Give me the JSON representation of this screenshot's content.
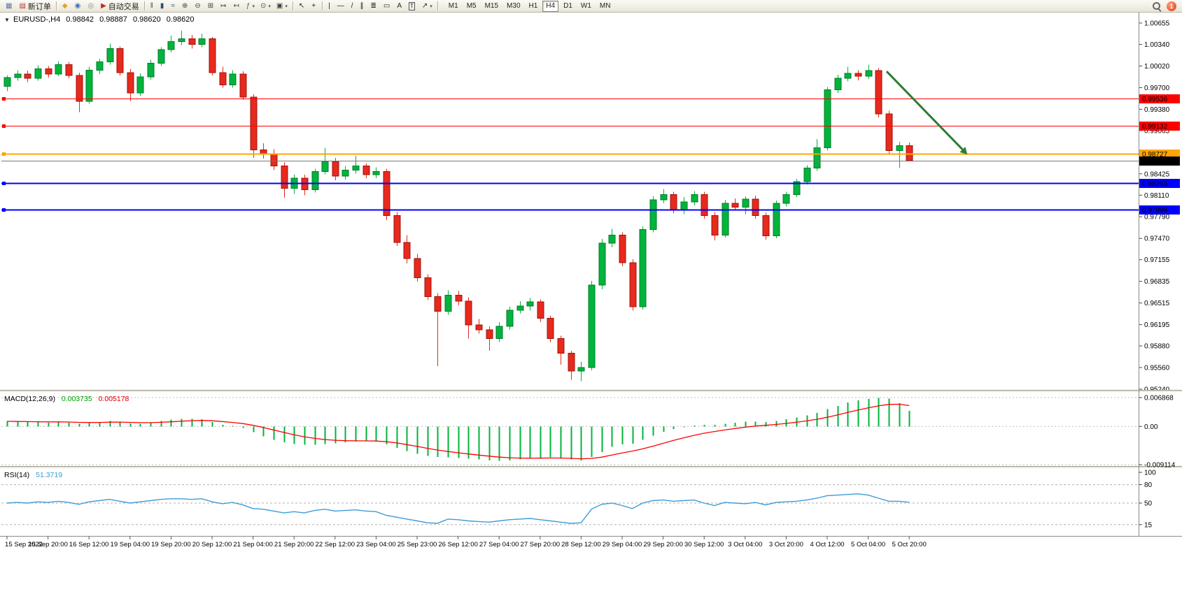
{
  "toolbar": {
    "items": [
      {
        "type": "icon",
        "name": "chart-window-icon",
        "glyph": "▦",
        "color": "#5A79A5"
      },
      {
        "type": "button",
        "name": "new-order-button",
        "glyph": "▤",
        "color": "#B23B2E",
        "label": "新订单"
      },
      {
        "type": "sep"
      },
      {
        "type": "icon",
        "name": "mql5-market-icon",
        "glyph": "◆",
        "color": "#DFA32D"
      },
      {
        "type": "icon",
        "name": "community-profile-icon",
        "glyph": "◉",
        "color": "#3B6FB5"
      },
      {
        "type": "icon",
        "name": "web-search-icon",
        "glyph": "◎",
        "color": "#8A8A8A"
      },
      {
        "type": "button",
        "name": "autotrading-button",
        "glyph": "▶",
        "color": "#C02B1D",
        "label": "自动交易"
      },
      {
        "type": "sep"
      },
      {
        "type": "icon",
        "name": "bars-chart-icon",
        "glyph": "‖",
        "color": "#3A5F3A"
      },
      {
        "type": "icon",
        "name": "candlestick-chart-icon",
        "glyph": "▮",
        "color": "#2E4E6E"
      },
      {
        "type": "icon",
        "name": "line-chart-icon",
        "glyph": "≈",
        "color": "#2E4E6E"
      },
      {
        "type": "icon",
        "name": "zoom-in-icon",
        "glyph": "⊕",
        "color": "#444444"
      },
      {
        "type": "icon",
        "name": "zoom-out-icon",
        "glyph": "⊖",
        "color": "#444444"
      },
      {
        "type": "icon",
        "name": "tile-windows-icon",
        "glyph": "⊞",
        "color": "#444444"
      },
      {
        "type": "icon",
        "name": "auto-scroll-icon",
        "glyph": "↦",
        "color": "#444444"
      },
      {
        "type": "icon",
        "name": "chart-shift-icon",
        "glyph": "↤",
        "color": "#444444"
      },
      {
        "type": "icon",
        "name": "indicators-icon",
        "glyph": "ƒ",
        "color": "#2E7D32",
        "caret": true
      },
      {
        "type": "icon",
        "name": "periods-clock-icon",
        "glyph": "⊙",
        "color": "#444444",
        "caret": true
      },
      {
        "type": "icon",
        "name": "templates-icon",
        "glyph": "▣",
        "color": "#444444",
        "caret": true
      },
      {
        "type": "sep"
      },
      {
        "type": "icon",
        "name": "cursor-icon",
        "glyph": "↖",
        "color": "#222222"
      },
      {
        "type": "icon",
        "name": "crosshair-icon",
        "glyph": "+",
        "color": "#222222"
      },
      {
        "type": "sep"
      },
      {
        "type": "icon",
        "name": "vertical-line-icon",
        "glyph": "|",
        "color": "#222222"
      },
      {
        "type": "icon",
        "name": "horizontal-line-icon",
        "glyph": "—",
        "color": "#222222"
      },
      {
        "type": "icon",
        "name": "trendline-icon",
        "glyph": "/",
        "color": "#222222"
      },
      {
        "type": "icon",
        "name": "equidistant-channel-icon",
        "glyph": "∥",
        "color": "#222222"
      },
      {
        "type": "icon",
        "name": "fibonacci-icon",
        "glyph": "≣",
        "color": "#222222"
      },
      {
        "type": "icon",
        "name": "shapes-icon",
        "glyph": "▭",
        "color": "#222222"
      },
      {
        "type": "icon",
        "name": "text-label-icon",
        "glyph": "A",
        "color": "#222222"
      },
      {
        "type": "icon",
        "name": "text-box-icon",
        "glyph": "T",
        "color": "#222222",
        "boxed": true
      },
      {
        "type": "icon",
        "name": "arrow-tools-icon",
        "glyph": "↗",
        "color": "#222222",
        "caret": true
      },
      {
        "type": "sep"
      }
    ],
    "timeframes": [
      {
        "label": "M1"
      },
      {
        "label": "M5"
      },
      {
        "label": "M15"
      },
      {
        "label": "M30"
      },
      {
        "label": "H1"
      },
      {
        "label": "H4",
        "active": true
      },
      {
        "label": "D1"
      },
      {
        "label": "W1"
      },
      {
        "label": "MN"
      }
    ],
    "notification_badge": "1"
  },
  "chart_data": {
    "type": "candlestick",
    "title_bar": {
      "collapse_icon": "▼",
      "symbol": "EURUSD-,H4",
      "open": "0.98842",
      "high": "0.98887",
      "low": "0.98620",
      "close": "0.98620"
    },
    "price_max": 1.00655,
    "price_min": 0.9524,
    "price_axis_ticks": [
      "1.00655",
      "1.00340",
      "1.00020",
      "0.99700",
      "0.99380",
      "0.99065",
      "0.98745",
      "0.98425",
      "0.98110",
      "0.97790",
      "0.97470",
      "0.97155",
      "0.96835",
      "0.96515",
      "0.96195",
      "0.95880",
      "0.95560",
      "0.95240"
    ],
    "time_labels": [
      "15 Sep 2022",
      "15 Sep 20:00",
      "16 Sep 12:00",
      "19 Sep 04:00",
      "19 Sep 20:00",
      "20 Sep 12:00",
      "21 Sep 04:00",
      "21 Sep 20:00",
      "22 Sep 12:00",
      "23 Sep 04:00",
      "25 Sep 23:00",
      "26 Sep 12:00",
      "27 Sep 04:00",
      "27 Sep 20:00",
      "28 Sep 12:00",
      "29 Sep 04:00",
      "29 Sep 20:00",
      "30 Sep 12:00",
      "3 Oct 04:00",
      "3 Oct 20:00",
      "4 Oct 12:00",
      "5 Oct 04:00",
      "5 Oct 20:00"
    ],
    "colors": {
      "up": "#00B43C",
      "down": "#E8291D",
      "up_border": "#007A29",
      "down_border": "#9E140C"
    },
    "candles": [
      [
        0.9972,
        0.9988,
        0.9965,
        0.9985
      ],
      [
        0.9985,
        0.9996,
        0.998,
        0.999
      ],
      [
        0.999,
        0.9995,
        0.9978,
        0.9984
      ],
      [
        0.9984,
        1.0003,
        0.998,
        0.9998
      ],
      [
        0.9998,
        1.0002,
        0.9985,
        0.999
      ],
      [
        0.999,
        1.0009,
        0.9987,
        1.0004
      ],
      [
        1.0004,
        1.0008,
        0.9984,
        0.9988
      ],
      [
        0.9988,
        0.9992,
        0.9934,
        0.995
      ],
      [
        0.995,
        1.0001,
        0.9946,
        0.9996
      ],
      [
        0.9996,
        1.0013,
        0.999,
        1.0008
      ],
      [
        1.0008,
        1.0035,
        1.0004,
        1.0028
      ],
      [
        1.0028,
        1.0031,
        0.9988,
        0.9992
      ],
      [
        0.9992,
        0.9998,
        0.995,
        0.9962
      ],
      [
        0.9962,
        0.9991,
        0.9958,
        0.9986
      ],
      [
        0.9986,
        1.0011,
        0.9982,
        1.0006
      ],
      [
        1.0006,
        1.003,
        1.0002,
        1.0026
      ],
      [
        1.0026,
        1.0047,
        1.0022,
        1.0038
      ],
      [
        1.0038,
        1.0054,
        1.0033,
        1.0042
      ],
      [
        1.0042,
        1.0048,
        1.0028,
        1.0034
      ],
      [
        1.0034,
        1.005,
        1.003,
        1.0042
      ],
      [
        1.0042,
        1.0045,
        0.9988,
        0.9992
      ],
      [
        0.9992,
        1.0001,
        0.997,
        0.9974
      ],
      [
        0.9974,
        0.9996,
        0.997,
        0.999
      ],
      [
        0.999,
        0.9994,
        0.9952,
        0.9956
      ],
      [
        0.9956,
        0.996,
        0.9866,
        0.9878
      ],
      [
        0.9878,
        0.9888,
        0.9865,
        0.9871
      ],
      [
        0.9871,
        0.9879,
        0.9848,
        0.9854
      ],
      [
        0.9854,
        0.986,
        0.9807,
        0.9821
      ],
      [
        0.9821,
        0.9842,
        0.9813,
        0.9836
      ],
      [
        0.9836,
        0.9841,
        0.9811,
        0.9819
      ],
      [
        0.9819,
        0.985,
        0.9815,
        0.9846
      ],
      [
        0.9846,
        0.9881,
        0.9842,
        0.9861
      ],
      [
        0.9861,
        0.9866,
        0.9833,
        0.9839
      ],
      [
        0.9839,
        0.9854,
        0.9834,
        0.9848
      ],
      [
        0.9848,
        0.9869,
        0.9843,
        0.9854
      ],
      [
        0.9854,
        0.9858,
        0.9836,
        0.9841
      ],
      [
        0.9841,
        0.9852,
        0.9836,
        0.9846
      ],
      [
        0.9846,
        0.985,
        0.9774,
        0.9781
      ],
      [
        0.9781,
        0.9786,
        0.9736,
        0.9741
      ],
      [
        0.9741,
        0.9752,
        0.971,
        0.9717
      ],
      [
        0.9717,
        0.9724,
        0.9683,
        0.9689
      ],
      [
        0.9689,
        0.9694,
        0.9656,
        0.9661
      ],
      [
        0.9661,
        0.9666,
        0.9558,
        0.9639
      ],
      [
        0.9639,
        0.967,
        0.9634,
        0.9663
      ],
      [
        0.9663,
        0.9669,
        0.9648,
        0.9654
      ],
      [
        0.9654,
        0.966,
        0.9599,
        0.9619
      ],
      [
        0.9619,
        0.9628,
        0.9606,
        0.9612
      ],
      [
        0.9612,
        0.9617,
        0.9581,
        0.9599
      ],
      [
        0.9599,
        0.9623,
        0.9594,
        0.9617
      ],
      [
        0.9617,
        0.9646,
        0.9612,
        0.9641
      ],
      [
        0.9641,
        0.9654,
        0.9636,
        0.9647
      ],
      [
        0.9647,
        0.9659,
        0.964,
        0.9653
      ],
      [
        0.9653,
        0.9657,
        0.9623,
        0.9629
      ],
      [
        0.9629,
        0.9633,
        0.9593,
        0.9599
      ],
      [
        0.9599,
        0.9603,
        0.956,
        0.9577
      ],
      [
        0.9577,
        0.9581,
        0.9538,
        0.9551
      ],
      [
        0.9551,
        0.9565,
        0.9536,
        0.9556
      ],
      [
        0.9556,
        0.9684,
        0.9552,
        0.9678
      ],
      [
        0.9678,
        0.9746,
        0.9672,
        0.974
      ],
      [
        0.974,
        0.9761,
        0.9734,
        0.9752
      ],
      [
        0.9752,
        0.9756,
        0.9706,
        0.9711
      ],
      [
        0.9711,
        0.9716,
        0.964,
        0.9646
      ],
      [
        0.9646,
        0.9765,
        0.9642,
        0.976
      ],
      [
        0.976,
        0.9809,
        0.9756,
        0.9804
      ],
      [
        0.9804,
        0.982,
        0.9799,
        0.9812
      ],
      [
        0.9812,
        0.9816,
        0.9784,
        0.9789
      ],
      [
        0.9789,
        0.9808,
        0.9783,
        0.9801
      ],
      [
        0.9801,
        0.9817,
        0.9796,
        0.9812
      ],
      [
        0.9812,
        0.9816,
        0.9776,
        0.9781
      ],
      [
        0.9781,
        0.9786,
        0.9744,
        0.9752
      ],
      [
        0.9752,
        0.9804,
        0.9748,
        0.9799
      ],
      [
        0.9799,
        0.9806,
        0.9788,
        0.9793
      ],
      [
        0.9793,
        0.9809,
        0.9783,
        0.9805
      ],
      [
        0.9805,
        0.981,
        0.9776,
        0.9781
      ],
      [
        0.9781,
        0.9785,
        0.9745,
        0.9751
      ],
      [
        0.9751,
        0.9803,
        0.9747,
        0.9799
      ],
      [
        0.9799,
        0.9816,
        0.9794,
        0.9812
      ],
      [
        0.9812,
        0.9835,
        0.9808,
        0.9831
      ],
      [
        0.9831,
        0.9855,
        0.9827,
        0.9851
      ],
      [
        0.9851,
        0.9894,
        0.9847,
        0.9881
      ],
      [
        0.9881,
        0.9971,
        0.9877,
        0.9967
      ],
      [
        0.9967,
        0.9989,
        0.9962,
        0.9984
      ],
      [
        0.9984,
        1.0001,
        0.9979,
        0.9991
      ],
      [
        0.9991,
        0.9996,
        0.9981,
        0.9987
      ],
      [
        0.9987,
        1.0004,
        0.9983,
        0.9995
      ],
      [
        0.9995,
        0.9999,
        0.9926,
        0.9931
      ],
      [
        0.9931,
        0.9936,
        0.9872,
        0.9877
      ],
      [
        0.9877,
        0.989,
        0.9851,
        0.98842
      ],
      [
        0.98842,
        0.98887,
        0.9862,
        0.9862
      ]
    ],
    "hlines": [
      {
        "price": 0.99536,
        "label": "0.99536",
        "color": "#FF0000",
        "width": 1.2
      },
      {
        "price": 0.99132,
        "label": "0.99132",
        "color": "#FF0000",
        "width": 1.2
      },
      {
        "price": 0.98727,
        "label": "0.98727",
        "color": "#FFA500",
        "width": 2
      },
      {
        "price": 0.98293,
        "label": "0.98293",
        "color": "#0000FF",
        "width": 2
      },
      {
        "price": 0.97898,
        "label": "0.97898",
        "color": "#0000FF",
        "width": 2
      }
    ],
    "current_price": {
      "value": 0.9862,
      "label": "0.98620",
      "line_color": "#777777",
      "tag_color": "#000000"
    },
    "arrow": {
      "i1": 85.8,
      "p1": 0.9994,
      "i2": 93.2,
      "p2": 0.98785,
      "color": "#2E7D32"
    },
    "macd": {
      "label": "MACD(12,26,9)",
      "value_main": "0.003735",
      "value_signal": "0.005178",
      "max": 0.006868,
      "min": -0.009114,
      "axis_ticks": [
        {
          "value": 0.006868,
          "label": "0.006868"
        },
        {
          "value": 0,
          "label": "0.00"
        },
        {
          "value": -0.009114,
          "label": "-0.009114"
        }
      ],
      "hist_color": "#00B43C",
      "signal_color": "#FF0000",
      "histogram": [
        0.0012,
        0.0011,
        0.001,
        0.001,
        0.0009,
        0.0011,
        0.0009,
        0.0006,
        0.0008,
        0.001,
        0.0013,
        0.0011,
        0.0007,
        0.0006,
        0.0009,
        0.0013,
        0.0016,
        0.0018,
        0.0018,
        0.0017,
        0.001,
        0.0004,
        0.0001,
        -0.0004,
        -0.0014,
        -0.0024,
        -0.0032,
        -0.0038,
        -0.0042,
        -0.0044,
        -0.0044,
        -0.0042,
        -0.004,
        -0.0038,
        -0.0036,
        -0.0035,
        -0.0036,
        -0.0043,
        -0.0051,
        -0.0059,
        -0.0065,
        -0.007,
        -0.0073,
        -0.0074,
        -0.0075,
        -0.0077,
        -0.0079,
        -0.0081,
        -0.0082,
        -0.0081,
        -0.0079,
        -0.0077,
        -0.0075,
        -0.0074,
        -0.0076,
        -0.0079,
        -0.0081,
        -0.0073,
        -0.0061,
        -0.0049,
        -0.0043,
        -0.0041,
        -0.0032,
        -0.0022,
        -0.0013,
        -0.0006,
        -0.0002,
        0.0002,
        0.0004,
        0.0004,
        0.0006,
        0.0009,
        0.0011,
        0.0011,
        0.001,
        0.0013,
        0.0017,
        0.0021,
        0.0026,
        0.0032,
        0.0041,
        0.0049,
        0.0057,
        0.0062,
        0.0065,
        0.0068,
        0.0066,
        0.0055,
        0.003735
      ]
    },
    "rsi": {
      "label": "RSI(14)",
      "value": "51.3719",
      "color": "#3E9BD6",
      "levels": [
        80,
        50,
        15
      ],
      "axis_ticks": [
        {
          "value": 100,
          "label": "100"
        },
        {
          "value": 80,
          "label": "80"
        },
        {
          "value": 50,
          "label": "50"
        },
        {
          "value": 15,
          "label": "15"
        }
      ],
      "values": [
        50,
        51,
        50,
        52,
        51,
        53,
        51,
        48,
        52,
        54,
        56,
        53,
        50,
        52,
        54,
        56,
        57,
        57,
        56,
        57,
        52,
        49,
        51,
        47,
        41,
        40,
        37,
        34,
        36,
        34,
        38,
        40,
        37,
        38,
        39,
        37,
        36,
        30,
        27,
        24,
        21,
        18,
        17,
        24,
        23,
        21,
        20,
        19,
        21,
        23,
        24,
        25,
        23,
        21,
        19,
        17,
        18,
        40,
        48,
        50,
        46,
        41,
        50,
        54,
        55,
        53,
        54,
        55,
        50,
        46,
        51,
        50,
        49,
        51,
        47,
        51,
        52,
        53,
        55,
        58,
        62,
        63,
        64,
        65,
        63,
        58,
        53,
        53,
        51.37
      ]
    }
  }
}
